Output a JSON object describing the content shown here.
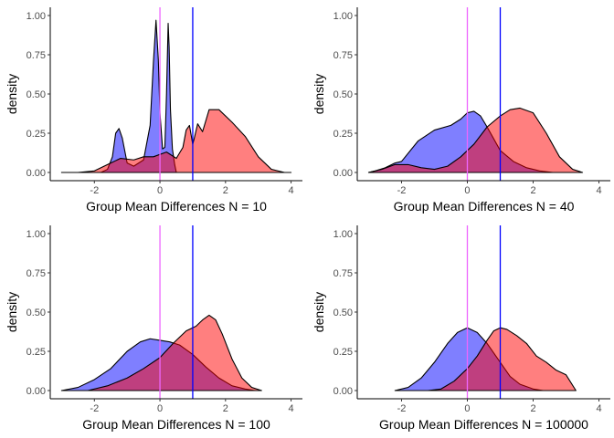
{
  "colors": {
    "group_a_fill": "#0000ff",
    "group_b_fill": "#ff0000",
    "ref_line_zero": "#ee66ff",
    "ref_line_one": "#0000ff",
    "outline": "#000000",
    "axis": "#000000"
  },
  "chart_data": [
    {
      "type": "area",
      "xlabel": "Group Mean Differences N = 10",
      "ylabel": "density",
      "xlim": [
        -3,
        4
      ],
      "ylim": [
        0,
        1
      ],
      "xticks": [
        -2,
        0,
        2,
        4
      ],
      "yticks": [
        0,
        0.25,
        0.5,
        0.75,
        1
      ],
      "ytick_labels": [
        "0.00",
        "0.25",
        "0.50",
        "0.75",
        "1.00"
      ],
      "grid": false,
      "reference_lines": [
        0,
        1
      ],
      "series": [
        {
          "x": [
            -3.0,
            -2.5,
            -2.0,
            -1.8,
            -1.6,
            -1.45,
            -1.35,
            -1.25,
            -1.15,
            -1.0,
            -0.8,
            -0.5,
            -0.3,
            -0.2,
            -0.12,
            -0.05,
            0.0,
            0.08,
            0.15,
            0.2,
            0.25,
            0.28,
            0.32,
            0.38,
            0.45,
            0.5
          ],
          "y": [
            0.0,
            0.0,
            0.0,
            0.0,
            0.02,
            0.1,
            0.25,
            0.28,
            0.22,
            0.06,
            0.04,
            0.08,
            0.3,
            0.7,
            0.97,
            0.72,
            0.38,
            0.15,
            0.16,
            0.5,
            0.95,
            0.8,
            0.4,
            0.15,
            0.05,
            0.0
          ]
        },
        {
          "x": [
            -3.0,
            -2.5,
            -2.0,
            -1.5,
            -1.2,
            -0.8,
            -0.5,
            -0.2,
            0.2,
            0.5,
            0.7,
            0.8,
            0.9,
            1.0,
            1.05,
            1.15,
            1.3,
            1.5,
            1.8,
            2.2,
            2.6,
            3.0,
            3.4,
            3.8,
            4.0
          ],
          "y": [
            0.0,
            0.0,
            0.01,
            0.06,
            0.09,
            0.08,
            0.1,
            0.1,
            0.13,
            0.09,
            0.16,
            0.27,
            0.3,
            0.18,
            0.22,
            0.31,
            0.26,
            0.4,
            0.4,
            0.32,
            0.23,
            0.1,
            0.02,
            0.0,
            0.0
          ]
        }
      ]
    },
    {
      "type": "area",
      "xlabel": "Group Mean Differences N = 40",
      "ylabel": "density",
      "xlim": [
        -3,
        4
      ],
      "ylim": [
        0,
        1
      ],
      "xticks": [
        -2,
        0,
        2,
        4
      ],
      "yticks": [
        0,
        0.25,
        0.5,
        0.75,
        1
      ],
      "ytick_labels": [
        "0.00",
        "0.25",
        "0.50",
        "0.75",
        "1.00"
      ],
      "grid": false,
      "reference_lines": [
        0,
        1
      ],
      "series": [
        {
          "x": [
            -3.0,
            -2.8,
            -2.5,
            -2.2,
            -2.0,
            -1.5,
            -1.0,
            -0.5,
            -0.2,
            0.0,
            0.2,
            0.4,
            0.6,
            1.0,
            1.4,
            1.8,
            2.2,
            2.6
          ],
          "y": [
            0.0,
            0.01,
            0.03,
            0.06,
            0.07,
            0.2,
            0.27,
            0.3,
            0.34,
            0.38,
            0.39,
            0.36,
            0.29,
            0.14,
            0.07,
            0.03,
            0.01,
            0.0
          ]
        },
        {
          "x": [
            -3.0,
            -2.6,
            -2.2,
            -1.8,
            -1.4,
            -1.0,
            -0.6,
            -0.2,
            0.2,
            0.6,
            1.0,
            1.3,
            1.6,
            2.0,
            2.4,
            2.8,
            3.2,
            3.5
          ],
          "y": [
            0.0,
            0.02,
            0.05,
            0.05,
            0.03,
            0.02,
            0.04,
            0.1,
            0.18,
            0.29,
            0.36,
            0.4,
            0.41,
            0.38,
            0.25,
            0.1,
            0.02,
            0.0
          ]
        }
      ]
    },
    {
      "type": "area",
      "xlabel": "Group Mean Differences N = 100",
      "ylabel": "density",
      "xlim": [
        -3,
        4
      ],
      "ylim": [
        0,
        1
      ],
      "xticks": [
        -2,
        0,
        2,
        4
      ],
      "yticks": [
        0,
        0.25,
        0.5,
        0.75,
        1
      ],
      "ytick_labels": [
        "0.00",
        "0.25",
        "0.50",
        "0.75",
        "1.00"
      ],
      "grid": false,
      "reference_lines": [
        0,
        1
      ],
      "series": [
        {
          "x": [
            -3.0,
            -2.5,
            -2.0,
            -1.5,
            -1.0,
            -0.6,
            -0.3,
            0.0,
            0.3,
            0.6,
            1.0,
            1.4,
            1.8,
            2.2,
            2.6,
            2.9
          ],
          "y": [
            0.0,
            0.02,
            0.07,
            0.14,
            0.25,
            0.31,
            0.33,
            0.32,
            0.31,
            0.29,
            0.23,
            0.15,
            0.08,
            0.03,
            0.01,
            0.0
          ]
        },
        {
          "x": [
            -3.0,
            -2.2,
            -1.6,
            -1.0,
            -0.5,
            0.0,
            0.4,
            0.8,
            1.1,
            1.3,
            1.5,
            1.7,
            1.9,
            2.2,
            2.5,
            2.8,
            3.1
          ],
          "y": [
            0.0,
            0.0,
            0.03,
            0.08,
            0.14,
            0.21,
            0.3,
            0.38,
            0.41,
            0.45,
            0.48,
            0.45,
            0.36,
            0.2,
            0.08,
            0.02,
            0.0
          ]
        }
      ]
    },
    {
      "type": "area",
      "xlabel": "Group Mean Differences N = 100000",
      "ylabel": "density",
      "xlim": [
        -3,
        4
      ],
      "ylim": [
        0,
        1
      ],
      "xticks": [
        -2,
        0,
        2,
        4
      ],
      "yticks": [
        0,
        0.25,
        0.5,
        0.75,
        1
      ],
      "ytick_labels": [
        "0.00",
        "0.25",
        "0.50",
        "0.75",
        "1.00"
      ],
      "grid": false,
      "reference_lines": [
        0,
        1
      ],
      "series": [
        {
          "x": [
            -2.2,
            -1.8,
            -1.4,
            -1.0,
            -0.6,
            -0.3,
            0.0,
            0.3,
            0.6,
            1.0,
            1.3,
            1.6,
            2.0,
            2.3
          ],
          "y": [
            0.0,
            0.02,
            0.08,
            0.18,
            0.3,
            0.37,
            0.4,
            0.37,
            0.3,
            0.18,
            0.09,
            0.04,
            0.01,
            0.0
          ]
        },
        {
          "x": [
            -1.2,
            -0.8,
            -0.4,
            0.0,
            0.3,
            0.6,
            0.8,
            1.0,
            1.2,
            1.5,
            1.8,
            2.1,
            2.4,
            2.7,
            3.0,
            3.3
          ],
          "y": [
            0.0,
            0.01,
            0.06,
            0.14,
            0.22,
            0.32,
            0.38,
            0.4,
            0.39,
            0.35,
            0.3,
            0.22,
            0.18,
            0.13,
            0.1,
            0.0
          ]
        }
      ]
    }
  ]
}
